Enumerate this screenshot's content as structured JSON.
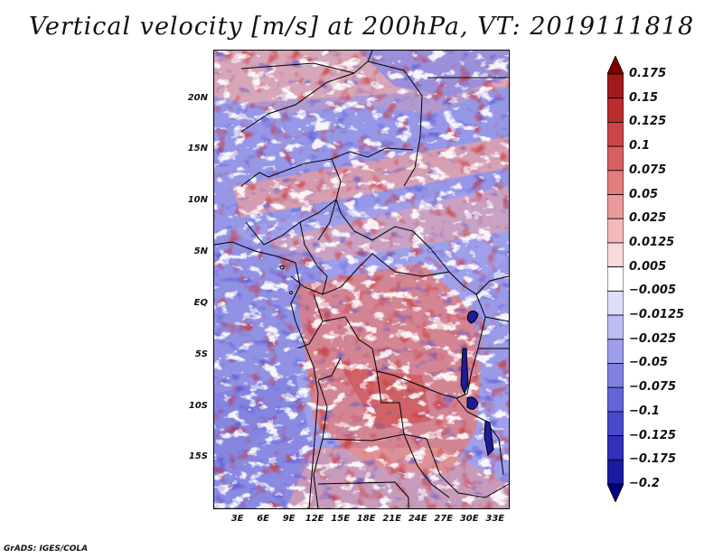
{
  "title": "Vertical velocity [m/s] at 200hPa, VT: 2019111818",
  "map": {
    "variable": "vertical velocity",
    "latitude_labels": [
      "20N",
      "15N",
      "10N",
      "5N",
      "EQ",
      "5S",
      "10S",
      "15S"
    ],
    "latitude_values": [
      20,
      15,
      10,
      5,
      0,
      -5,
      -10,
      -15
    ],
    "longitude_labels": [
      "3E",
      "6E",
      "9E",
      "12E",
      "15E",
      "18E",
      "21E",
      "24E",
      "27E",
      "30E",
      "33E"
    ],
    "longitude_values": [
      3,
      6,
      9,
      12,
      15,
      18,
      21,
      24,
      27,
      30,
      33
    ],
    "lat_range": [
      -19.8,
      24.8
    ],
    "lon_range": [
      0.2,
      34.5
    ],
    "boundary_color": "#000000"
  },
  "colorbar": {
    "labels": [
      "0.175",
      "0.15",
      "0.125",
      "0.1",
      "0.075",
      "0.05",
      "0.025",
      "0.0125",
      "0.005",
      "−0.005",
      "−0.0125",
      "−0.025",
      "−0.05",
      "−0.075",
      "−0.1",
      "−0.125",
      "−0.175",
      "−0.2"
    ],
    "colors": [
      "#800000",
      "#a11a1a",
      "#bb2d2d",
      "#cc4545",
      "#d86060",
      "#e37c7c",
      "#eb9a9a",
      "#f3baba",
      "#f9dada",
      "#ffffff",
      "#dedef9",
      "#bdbdf3",
      "#9e9eeb",
      "#8181e3",
      "#6565d8",
      "#4949cc",
      "#3030b8",
      "#1a1aa0",
      "#000080"
    ]
  },
  "credit": "GrADS: IGES/COLA"
}
